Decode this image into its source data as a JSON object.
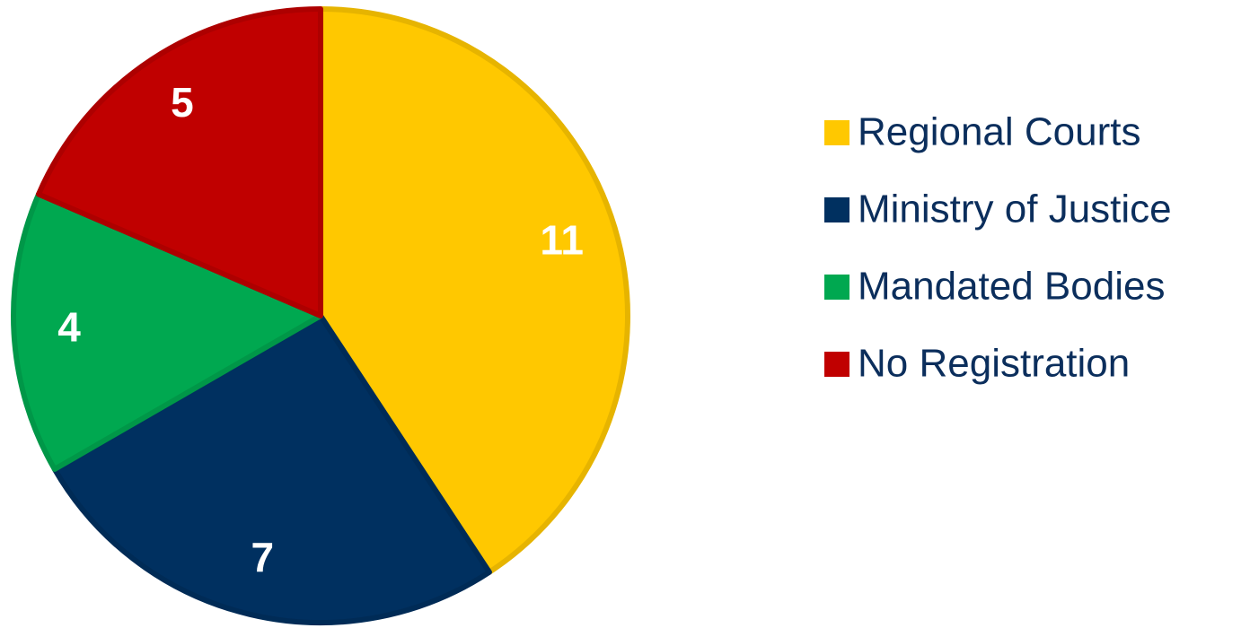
{
  "chart_data": {
    "type": "pie",
    "categories": [
      "Regional Courts",
      "Ministry of Justice",
      "Mandated Bodies",
      "No Registration"
    ],
    "values": [
      11,
      7,
      4,
      5
    ],
    "colors": [
      "#FFC800",
      "#003060",
      "#00A850",
      "#C00000"
    ],
    "legend": "right"
  }
}
